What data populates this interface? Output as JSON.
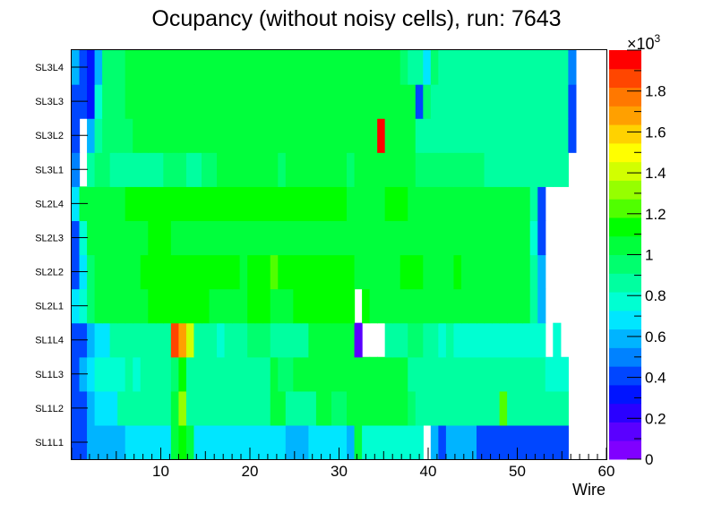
{
  "chart_data": {
    "type": "heatmap",
    "title": "Ocupancy (without noisy cells), run: 7643",
    "xlabel": "Wire",
    "ylabel": "",
    "xlim": [
      0,
      60
    ],
    "x_ticks": [
      "10",
      "20",
      "30",
      "40",
      "50",
      "60"
    ],
    "y_categories": [
      "SL1L1",
      "SL1L2",
      "SL1L3",
      "SL1L4",
      "SL2L1",
      "SL2L2",
      "SL2L3",
      "SL2L4",
      "SL3L1",
      "SL3L2",
      "SL3L3",
      "SL3L4"
    ],
    "zlim": [
      0,
      2000
    ],
    "z_multiplier": "×10³",
    "z_multiplier_base": "×10",
    "z_multiplier_exp": "3",
    "z_ticks": [
      "0",
      "0.2",
      "0.4",
      "0.6",
      "0.8",
      "1",
      "1.2",
      "1.4",
      "1.6",
      "1.8"
    ],
    "grid": false,
    "colors": [
      "#8000ff",
      "#5a00ff",
      "#2a00ff",
      "#0014ff",
      "#0046ff",
      "#0082ff",
      "#00b4ff",
      "#00e6ff",
      "#00ffd2",
      "#00ffa0",
      "#00ff6e",
      "#00ff3c",
      "#00ff00",
      "#50ff00",
      "#96ff00",
      "#d2ff00",
      "#ffff00",
      "#ffd200",
      "#ffa000",
      "#ff7800",
      "#ff4600",
      "#ff0000"
    ],
    "values": [
      [
        400,
        400,
        550,
        550,
        550,
        550,
        550,
        650,
        650,
        650,
        650,
        650,
        650,
        1050,
        1150,
        1000,
        650,
        650,
        650,
        650,
        650,
        650,
        650,
        650,
        650,
        650,
        650,
        650,
        600,
        600,
        600,
        650,
        700,
        650,
        650,
        650,
        600,
        1000,
        800,
        800,
        800,
        800,
        800,
        800,
        800,
        800,
        0,
        550,
        400,
        550,
        550,
        550,
        550,
        450,
        450,
        450,
        450,
        450,
        450,
        450,
        450,
        450,
        450,
        450,
        450,
        0,
        0,
        0,
        0,
        0
      ],
      [
        450,
        450,
        600,
        650,
        650,
        650,
        850,
        850,
        850,
        850,
        850,
        850,
        850,
        1050,
        1350,
        850,
        850,
        850,
        850,
        850,
        850,
        850,
        900,
        850,
        850,
        900,
        1050,
        1000,
        900,
        900,
        900,
        900,
        1000,
        1000,
        950,
        950,
        1000,
        1000,
        1000,
        1000,
        1000,
        1000,
        1000,
        1000,
        950,
        900,
        850,
        900,
        900,
        900,
        900,
        850,
        900,
        900,
        900,
        900,
        1250,
        900,
        900,
        900,
        850,
        850,
        850,
        850,
        850,
        0,
        0,
        0,
        0,
        0
      ],
      [
        450,
        550,
        700,
        750,
        750,
        750,
        800,
        850,
        800,
        850,
        850,
        850,
        850,
        950,
        1150,
        850,
        850,
        850,
        850,
        850,
        850,
        850,
        900,
        850,
        850,
        900,
        1000,
        950,
        950,
        1000,
        1000,
        1000,
        1000,
        1000,
        1000,
        1000,
        1000,
        1000,
        1000,
        1000,
        1000,
        1000,
        1000,
        1000,
        900,
        900,
        850,
        900,
        850,
        850,
        850,
        900,
        900,
        900,
        850,
        850,
        850,
        850,
        850,
        850,
        850,
        850,
        750,
        800,
        750,
        0,
        0,
        0,
        0,
        0
      ],
      [
        450,
        450,
        550,
        650,
        650,
        850,
        850,
        850,
        850,
        850,
        850,
        850,
        850,
        1900,
        1650,
        1400,
        850,
        850,
        850,
        800,
        850,
        850,
        850,
        950,
        950,
        950,
        850,
        900,
        850,
        850,
        900,
        1000,
        1000,
        1000,
        1000,
        1000,
        1000,
        150,
        0,
        0,
        0,
        850,
        850,
        850,
        950,
        950,
        850,
        850,
        800,
        850,
        800,
        800,
        800,
        800,
        800,
        800,
        800,
        800,
        800,
        800,
        750,
        750,
        0,
        750,
        0,
        0,
        0,
        0,
        0,
        0
      ],
      [
        650,
        750,
        950,
        1000,
        1000,
        1050,
        1050,
        1050,
        1050,
        1050,
        1100,
        1100,
        1150,
        1150,
        1150,
        1100,
        1100,
        1100,
        1050,
        1050,
        1050,
        1050,
        1050,
        1100,
        1100,
        1100,
        1050,
        1050,
        1050,
        1100,
        1100,
        1100,
        1100,
        1100,
        1100,
        1100,
        1100,
        0,
        1100,
        1050,
        1050,
        1050,
        1050,
        1050,
        1050,
        1050,
        1050,
        1050,
        1050,
        1050,
        1050,
        1050,
        1050,
        1050,
        1050,
        1050,
        1050,
        1050,
        1050,
        1000,
        850,
        550,
        0,
        0,
        0,
        0,
        0,
        0,
        0,
        0
      ],
      [
        450,
        650,
        950,
        1000,
        1000,
        1000,
        1050,
        1050,
        1050,
        1100,
        1100,
        1100,
        1150,
        1150,
        1100,
        1100,
        1100,
        1100,
        1100,
        1100,
        1150,
        1100,
        1050,
        1100,
        1100,
        1150,
        1250,
        1150,
        1150,
        1150,
        1150,
        1150,
        1150,
        1150,
        1100,
        1100,
        1100,
        1050,
        1050,
        1050,
        1050,
        1050,
        1050,
        1100,
        1100,
        1100,
        1050,
        1050,
        1050,
        1050,
        1100,
        1050,
        1050,
        1050,
        1050,
        1050,
        1050,
        1050,
        1050,
        1050,
        850,
        550,
        0,
        0,
        0,
        0,
        0,
        0,
        0,
        0
      ],
      [
        450,
        750,
        1000,
        1000,
        1000,
        1050,
        1050,
        1050,
        1050,
        1050,
        1100,
        1100,
        1100,
        1050,
        1050,
        1050,
        1050,
        1050,
        1050,
        1050,
        1050,
        1050,
        1050,
        1050,
        1050,
        1050,
        1050,
        1050,
        1050,
        1050,
        1050,
        1050,
        1050,
        1050,
        1050,
        1050,
        1050,
        1050,
        1050,
        1050,
        1050,
        1050,
        1050,
        1050,
        1050,
        1050,
        1050,
        1050,
        1050,
        1050,
        1050,
        1050,
        1050,
        1050,
        1050,
        1050,
        1050,
        1050,
        1050,
        1050,
        800,
        450,
        0,
        0,
        0,
        0,
        0,
        0,
        0,
        0
      ],
      [
        650,
        1000,
        1050,
        1050,
        1050,
        1050,
        1050,
        1100,
        1100,
        1150,
        1150,
        1150,
        1150,
        1150,
        1150,
        1150,
        1150,
        1150,
        1150,
        1150,
        1150,
        1150,
        1100,
        1150,
        1150,
        1150,
        1150,
        1150,
        1150,
        1150,
        1150,
        1150,
        1150,
        1100,
        1100,
        1100,
        1050,
        1050,
        1050,
        1050,
        1050,
        1100,
        1100,
        1100,
        1050,
        1050,
        1050,
        1050,
        1050,
        1050,
        1050,
        1050,
        1050,
        1050,
        1050,
        1050,
        1050,
        1050,
        1050,
        1000,
        850,
        450,
        0,
        0,
        0,
        0,
        0,
        0,
        0,
        0
      ],
      [
        500,
        0,
        850,
        950,
        950,
        900,
        900,
        900,
        900,
        900,
        900,
        900,
        950,
        950,
        950,
        900,
        900,
        950,
        950,
        1000,
        1000,
        1000,
        1000,
        1000,
        1000,
        1000,
        1000,
        950,
        1000,
        1000,
        1000,
        1000,
        1000,
        1000,
        1000,
        1000,
        950,
        1000,
        1000,
        1000,
        1000,
        1000,
        1000,
        1000,
        1000,
        950,
        950,
        950,
        950,
        950,
        950,
        950,
        950,
        950,
        900,
        900,
        900,
        900,
        900,
        900,
        900,
        900,
        900,
        900,
        900,
        0,
        0,
        0,
        0,
        0
      ],
      [
        400,
        0,
        550,
        900,
        950,
        950,
        950,
        950,
        1000,
        1000,
        1000,
        1050,
        1050,
        1000,
        1000,
        1050,
        1050,
        1050,
        1050,
        1050,
        1000,
        1000,
        1000,
        1000,
        1050,
        1050,
        1000,
        1000,
        1050,
        1050,
        1050,
        1050,
        1050,
        1050,
        1050,
        1050,
        1050,
        1050,
        1050,
        1050,
        2000,
        1050,
        1050,
        1050,
        1050,
        850,
        850,
        900,
        900,
        900,
        900,
        900,
        900,
        900,
        900,
        900,
        900,
        900,
        900,
        900,
        900,
        900,
        900,
        900,
        900,
        400,
        0,
        0,
        0,
        0
      ],
      [
        450,
        450,
        300,
        800,
        950,
        950,
        950,
        1000,
        1000,
        1000,
        1000,
        1050,
        1050,
        1000,
        1000,
        1000,
        1050,
        1050,
        1050,
        1050,
        1000,
        1000,
        1000,
        1000,
        1000,
        1000,
        1000,
        1000,
        1000,
        1000,
        1000,
        1000,
        1000,
        1000,
        1000,
        1000,
        1000,
        1000,
        1000,
        1000,
        1000,
        1000,
        1000,
        1000,
        1000,
        450,
        950,
        900,
        900,
        900,
        900,
        900,
        900,
        900,
        900,
        900,
        900,
        900,
        900,
        900,
        900,
        900,
        900,
        900,
        900,
        400,
        0,
        0,
        0,
        0
      ],
      [
        550,
        450,
        300,
        600,
        950,
        950,
        950,
        1000,
        1000,
        1000,
        1000,
        1050,
        1050,
        1000,
        1000,
        1000,
        1050,
        1050,
        1050,
        1050,
        1000,
        1000,
        1000,
        1000,
        1000,
        1000,
        1000,
        1000,
        1000,
        1000,
        1000,
        1000,
        1000,
        1000,
        1000,
        1000,
        1000,
        1000,
        1000,
        1000,
        1000,
        1000,
        1000,
        950,
        850,
        850,
        650,
        950,
        900,
        900,
        900,
        900,
        900,
        900,
        900,
        900,
        900,
        850,
        850,
        850,
        850,
        850,
        850,
        850,
        850,
        500,
        0,
        0,
        0,
        0
      ]
    ]
  }
}
